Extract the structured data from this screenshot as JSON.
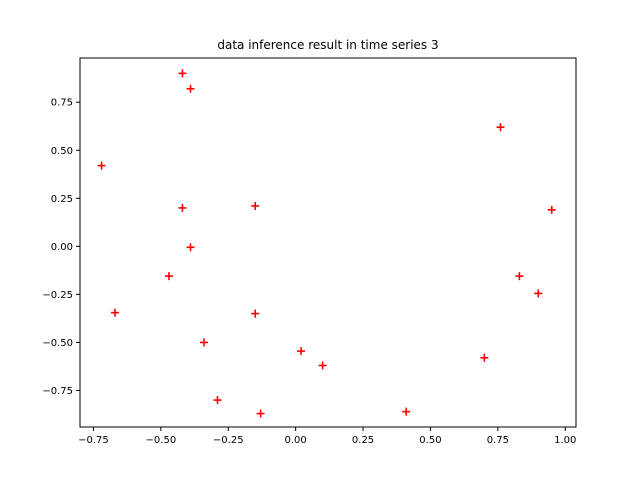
{
  "chart_data": {
    "type": "scatter",
    "title": "data inference result in time series 3",
    "xlabel": "",
    "ylabel": "",
    "xlim": [
      -0.8,
      1.04
    ],
    "ylim": [
      -0.94,
      0.98
    ],
    "xticks": [
      -0.75,
      -0.5,
      -0.25,
      0.0,
      0.25,
      0.5,
      0.75,
      1.0
    ],
    "xtick_labels": [
      "−0.75",
      "−0.50",
      "−0.25",
      "0.00",
      "0.25",
      "0.50",
      "0.75",
      "1.00"
    ],
    "yticks": [
      -0.75,
      -0.5,
      -0.25,
      0.0,
      0.25,
      0.5,
      0.75
    ],
    "ytick_labels": [
      "−0.75",
      "−0.50",
      "−0.25",
      "0.00",
      "0.25",
      "0.50",
      "0.75"
    ],
    "grid": false,
    "marker": "+",
    "color": "#ff0000",
    "series": [
      {
        "points": [
          {
            "x": -0.42,
            "y": 0.9
          },
          {
            "x": -0.39,
            "y": 0.82
          },
          {
            "x": -0.72,
            "y": 0.42
          },
          {
            "x": -0.42,
            "y": 0.2
          },
          {
            "x": -0.15,
            "y": 0.21
          },
          {
            "x": -0.39,
            "y": -0.005
          },
          {
            "x": -0.47,
            "y": -0.155
          },
          {
            "x": -0.67,
            "y": -0.345
          },
          {
            "x": -0.15,
            "y": -0.35
          },
          {
            "x": -0.34,
            "y": -0.5
          },
          {
            "x": 0.02,
            "y": -0.545
          },
          {
            "x": 0.1,
            "y": -0.62
          },
          {
            "x": -0.29,
            "y": -0.8
          },
          {
            "x": -0.13,
            "y": -0.87
          },
          {
            "x": 0.41,
            "y": -0.86
          },
          {
            "x": 0.7,
            "y": -0.58
          },
          {
            "x": 0.76,
            "y": 0.62
          },
          {
            "x": 0.83,
            "y": -0.155
          },
          {
            "x": 0.9,
            "y": -0.245
          },
          {
            "x": 0.95,
            "y": 0.19
          }
        ]
      }
    ]
  }
}
